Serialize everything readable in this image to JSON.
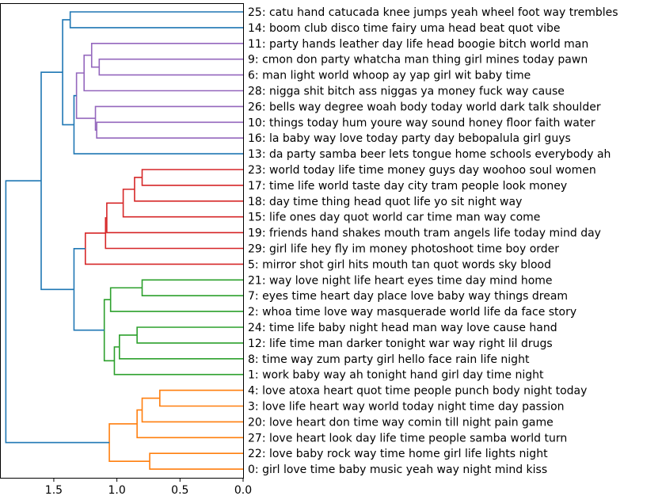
{
  "chart_data": {
    "type": "dendrogram",
    "orientation": "left",
    "xlim": [
      1.92,
      0.0
    ],
    "xticks": [
      1.5,
      1.0,
      0.5,
      0.0
    ],
    "xtick_labels": [
      "1.5",
      "1.0",
      "0.5",
      "0.0"
    ],
    "colors": {
      "blue": "#1f77b4",
      "orange": "#ff7f0e",
      "green": "#2ca02c",
      "red": "#d62728",
      "purple": "#9467bd"
    },
    "leaves": [
      "25: catu hand catucada knee jumps yeah wheel foot way trembles",
      "14: boom club disco time fairy uma head beat quot vibe",
      "11: party hands leather day life head boogie bitch world man",
      "9: cmon don party whatcha man thing girl mines today pawn",
      "6: man light world whoop ay yap girl wit baby time",
      "28: nigga shit bitch ass niggas ya money fuck way cause",
      "26: bells way degree woah body today world dark talk shoulder",
      "10: things today hum youre way sound honey floor faith water",
      "16: la baby way love today party day bebopalula girl guys",
      "13: da party samba beer lets tongue home schools everybody ah",
      "23: world today life time money guys day woohoo soul women",
      "17: time life world taste day city tram people look money",
      "18: day time thing head quot life yo sit night way",
      "15: life ones day quot world car time man way come",
      "19: friends hand shakes mouth tram angels life today mind day",
      "29: girl life hey fly im money photoshoot time boy order",
      "5: mirror shot girl hits mouth tan quot words sky blood",
      "21: way love night life heart eyes time day mind home",
      "7: eyes time heart day place love baby way things dream",
      "2: whoa time love way masquerade world life da face story",
      "24: time life baby night head man way love cause hand",
      "12: life time man darker tonight war way right lil drugs",
      "8: time way zum party girl hello face rain life night",
      "1: work baby way ah tonight hand girl day time night",
      "4: love atoxa heart quot time people punch body night today",
      "3: love life heart way world today night time day passion",
      "20: love heart don time way comin till night pain game",
      "27: love heart look day life time people samba world turn",
      "22: love baby rock way time home girl life lights night",
      "0: girl love time baby music yeah way night mind kiss"
    ],
    "merges": [
      {
        "left": 0,
        "right": 1,
        "height": 1.37,
        "color": "blue"
      },
      {
        "left": 3,
        "right": 4,
        "height": 1.14,
        "color": "purple"
      },
      {
        "left": 2,
        "right": 31,
        "height": 1.2,
        "color": "purple"
      },
      {
        "left": 5,
        "right": 32,
        "height": 1.26,
        "color": "purple"
      },
      {
        "left": 7,
        "right": 8,
        "height": 1.16,
        "color": "purple"
      },
      {
        "left": 6,
        "right": 34,
        "height": 1.17,
        "color": "purple"
      },
      {
        "left": 33,
        "right": 35,
        "height": 1.32,
        "color": "purple"
      },
      {
        "left": 9,
        "right": 36,
        "height": 1.34,
        "color": "blue"
      },
      {
        "left": 30,
        "right": 37,
        "height": 1.43,
        "color": "blue"
      },
      {
        "left": 10,
        "right": 11,
        "height": 0.8,
        "color": "red"
      },
      {
        "left": 12,
        "right": 39,
        "height": 0.86,
        "color": "red"
      },
      {
        "left": 13,
        "right": 40,
        "height": 0.95,
        "color": "red"
      },
      {
        "left": 14,
        "right": 41,
        "height": 1.08,
        "color": "red"
      },
      {
        "left": 15,
        "right": 42,
        "height": 1.09,
        "color": "red"
      },
      {
        "left": 16,
        "right": 43,
        "height": 1.25,
        "color": "red"
      },
      {
        "left": 17,
        "right": 18,
        "height": 0.8,
        "color": "green"
      },
      {
        "left": 19,
        "right": 45,
        "height": 1.05,
        "color": "green"
      },
      {
        "left": 20,
        "right": 21,
        "height": 0.84,
        "color": "green"
      },
      {
        "left": 22,
        "right": 47,
        "height": 0.98,
        "color": "green"
      },
      {
        "left": 23,
        "right": 48,
        "height": 1.02,
        "color": "green"
      },
      {
        "left": 46,
        "right": 49,
        "height": 1.1,
        "color": "green"
      },
      {
        "left": 44,
        "right": 50,
        "height": 1.34,
        "color": "blue"
      },
      {
        "left": 38,
        "right": 51,
        "height": 1.6,
        "color": "blue"
      },
      {
        "left": 24,
        "right": 25,
        "height": 0.66,
        "color": "orange"
      },
      {
        "left": 26,
        "right": 53,
        "height": 0.8,
        "color": "orange"
      },
      {
        "left": 27,
        "right": 54,
        "height": 0.84,
        "color": "orange"
      },
      {
        "left": 28,
        "right": 29,
        "height": 0.74,
        "color": "orange"
      },
      {
        "left": 55,
        "right": 56,
        "height": 1.06,
        "color": "orange"
      },
      {
        "left": 52,
        "right": 57,
        "height": 1.88,
        "color": "blue"
      }
    ]
  }
}
